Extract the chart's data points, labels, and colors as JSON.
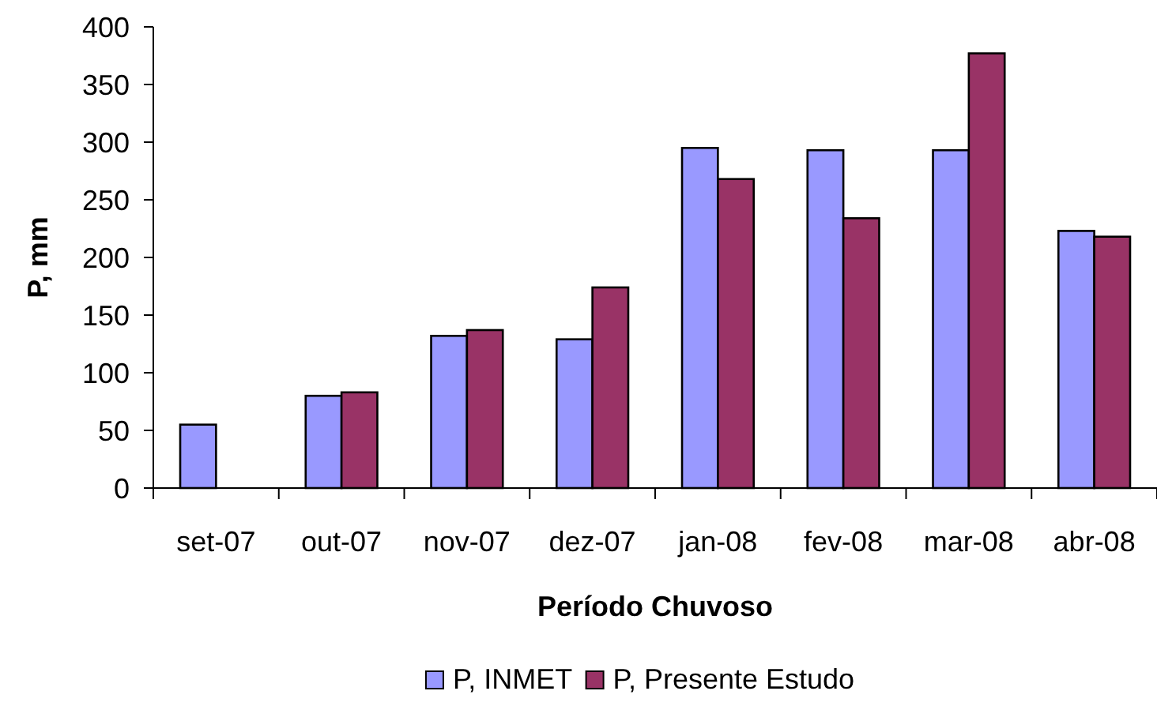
{
  "chart_data": {
    "type": "bar",
    "xlabel": "Período Chuvoso",
    "ylabel": "P, mm",
    "categories": [
      "set-07",
      "out-07",
      "nov-07",
      "dez-07",
      "jan-08",
      "fev-08",
      "mar-08",
      "abr-08"
    ],
    "series": [
      {
        "name": "P, INMET",
        "color": "#9999ff",
        "values": [
          55,
          80,
          132,
          129,
          295,
          293,
          293,
          223
        ]
      },
      {
        "name": "P, Presente Estudo",
        "color": "#993366",
        "values": [
          null,
          83,
          137,
          174,
          268,
          234,
          377,
          218
        ]
      }
    ],
    "ylim": [
      0,
      400
    ],
    "yticks": [
      0,
      50,
      100,
      150,
      200,
      250,
      300,
      350,
      400
    ],
    "legend": "bottom"
  }
}
